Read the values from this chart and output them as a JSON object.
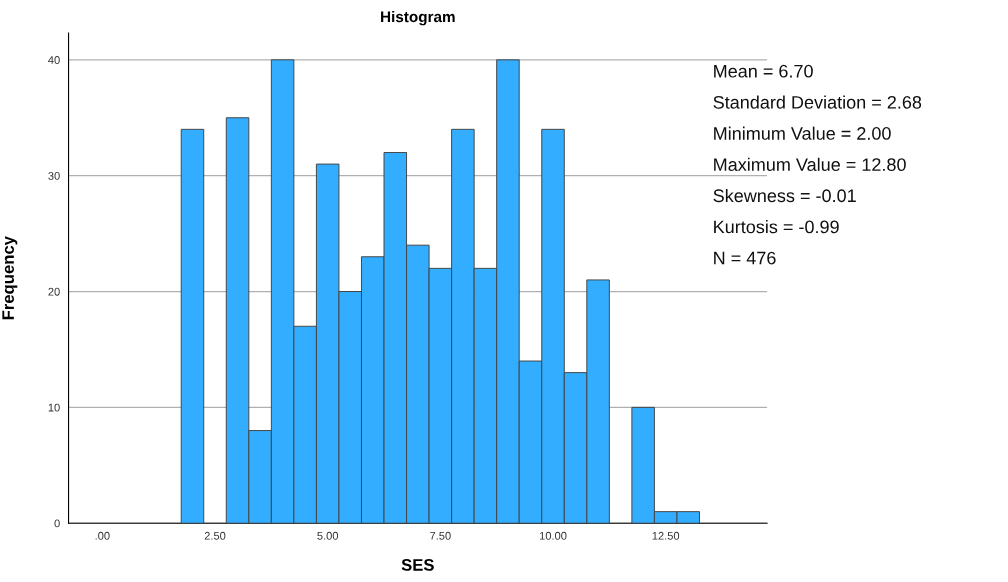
{
  "chart_data": {
    "type": "histogram",
    "title": "Histogram",
    "xlabel": "SES",
    "ylabel": "Frequency",
    "bins": [
      1.75,
      2.25,
      2.75,
      3.25,
      3.75,
      4.25,
      4.75,
      5.25,
      5.75,
      6.25,
      6.75,
      7.25,
      7.75,
      8.25,
      8.75,
      9.25,
      9.75,
      10.25,
      10.75,
      11.25,
      11.75,
      12.25,
      12.75,
      13.25
    ],
    "values": [
      34,
      0,
      35,
      8,
      40,
      17,
      31,
      20,
      23,
      32,
      24,
      22,
      34,
      22,
      40,
      14,
      34,
      13,
      21,
      0,
      10,
      1,
      1
    ],
    "color": "#33adff",
    "xlim": [
      -0.75,
      14.75
    ],
    "ylim": [
      0,
      42.3
    ],
    "xticks": [
      {
        "value": 0,
        "label": ".00"
      },
      {
        "value": 2.5,
        "label": "2.50"
      },
      {
        "value": 5,
        "label": "5.00"
      },
      {
        "value": 7.5,
        "label": "7.50"
      },
      {
        "value": 10,
        "label": "10.00"
      },
      {
        "value": 12.5,
        "label": "12.50"
      }
    ],
    "yticks": [
      0,
      10,
      20,
      30,
      40
    ],
    "grid": "y",
    "legend": false,
    "annotations": [
      "Mean = 6.70",
      "Standard Deviation = 2.68",
      "Minimum Value = 2.00",
      "Maximum Value = 12.80",
      "Skewness = -0.01",
      "Kurtosis = -0.99",
      "N = 476"
    ]
  }
}
